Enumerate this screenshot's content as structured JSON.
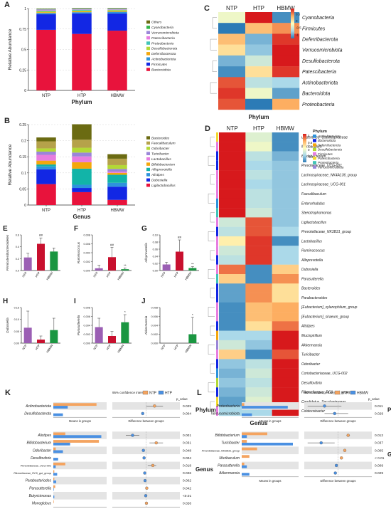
{
  "panels": {
    "A": {
      "letter": "A",
      "ylabel": "Relative Abundance",
      "xlabel": "Phylum",
      "categories": [
        "NTP",
        "HTP",
        "HBMW"
      ],
      "yticks": [
        "0",
        "0.25",
        "0.5",
        "0.75",
        "1"
      ],
      "series": [
        {
          "name": "Bacteroidota",
          "color": "#e8133c",
          "values": [
            0.74,
            0.69,
            0.73
          ]
        },
        {
          "name": "Firmicutes",
          "color": "#1227e4",
          "values": [
            0.19,
            0.25,
            0.21
          ]
        },
        {
          "name": "Actinobacteriota",
          "color": "#2d93dc",
          "values": [
            0.015,
            0.015,
            0.02
          ]
        },
        {
          "name": "Deferribacterota",
          "color": "#f4a70c",
          "values": [
            0.01,
            0.01,
            0.01
          ]
        },
        {
          "name": "Desulfobacterota",
          "color": "#b3d936",
          "values": [
            0.01,
            0.01,
            0.01
          ]
        },
        {
          "name": "Proteobacteria",
          "color": "#41c5b7",
          "values": [
            0.01,
            0.01,
            0.005
          ]
        },
        {
          "name": "Patescibacteria",
          "color": "#e77de0",
          "values": [
            0.01,
            0.005,
            0.005
          ]
        },
        {
          "name": "Verrucomicrobiota",
          "color": "#9a86d8",
          "values": [
            0.005,
            0.005,
            0.005
          ]
        },
        {
          "name": "Cyanobacteria",
          "color": "#33b54a",
          "values": [
            0.005,
            0.005,
            0.005
          ]
        },
        {
          "name": "Others",
          "color": "#6b6b12",
          "values": [
            0.005,
            0.005,
            0.005
          ]
        }
      ]
    },
    "B": {
      "letter": "B",
      "ylabel": "Relative Abundance",
      "xlabel": "Genus",
      "categories": [
        "NTP",
        "HTP",
        "HBMW"
      ],
      "yticks": [
        "0",
        "0.05",
        "0.1",
        "0.15",
        "0.2",
        "0.25"
      ],
      "series": [
        {
          "name": "Ligilactobacillus",
          "color": "#e8133c",
          "values": [
            0.065,
            0.04,
            0.016
          ]
        },
        {
          "name": "Dubosiella",
          "color": "#1227e4",
          "values": [
            0.046,
            0.013,
            0.041
          ]
        },
        {
          "name": "Alistipes",
          "color": "#2d93dc",
          "values": [
            0.009,
            0.01,
            0.012
          ]
        },
        {
          "name": "Alloprevotella",
          "color": "#12b4a8",
          "values": [
            0.006,
            0.05,
            0.025
          ]
        },
        {
          "name": "Bifidobacterium",
          "color": "#f4a70c",
          "values": [
            0.012,
            0.02,
            0.006
          ]
        },
        {
          "name": "Lactobacillus",
          "color": "#e77de0",
          "values": [
            0.018,
            0.018,
            0.004
          ]
        },
        {
          "name": "Turicibacter",
          "color": "#9a86d8",
          "values": [
            0.01,
            0.012,
            0.008
          ]
        },
        {
          "name": "Odoribacter",
          "color": "#b3d936",
          "values": [
            0.01,
            0.015,
            0.012
          ]
        },
        {
          "name": "Faecalibaculum",
          "color": "#b5a24a",
          "values": [
            0.022,
            0.025,
            0.02
          ]
        },
        {
          "name": "Bacteroides",
          "color": "#6b6b12",
          "values": [
            0.012,
            0.048,
            0.014
          ]
        }
      ]
    },
    "E": {
      "letter": "E",
      "ylabel": "Firmicutes/Bacteroidetes",
      "categories": [
        "NTP",
        "HTP",
        "HBMW"
      ],
      "ymax": 0.6,
      "yticks": [
        "0.0",
        "0.2",
        "0.4",
        "0.6"
      ],
      "values": [
        0.22,
        0.45,
        0.32
      ],
      "errors": [
        0.07,
        0.1,
        0.06
      ],
      "marks": [
        "",
        "##",
        ""
      ]
    },
    "F": {
      "letter": "F",
      "ylabel": "Ruminococcus",
      "categories": [
        "NTP",
        "HTP",
        "HBMW"
      ],
      "ymax": 0.008,
      "yticks": [
        "0.000",
        "0.002",
        "0.004",
        "0.006",
        "0.008"
      ],
      "values": [
        0.0005,
        0.003,
        0.0003
      ],
      "errors": [
        0.0007,
        0.0022,
        0.0003
      ],
      "marks": [
        "",
        "##",
        "**"
      ]
    },
    "G": {
      "letter": "G",
      "ylabel": "Alloprevotella",
      "categories": [
        "NTP",
        "HTP",
        "HBMW"
      ],
      "ymax": 0.1,
      "yticks": [
        "0.00",
        "0.02",
        "0.04",
        "0.06",
        "0.08",
        "0.10"
      ],
      "values": [
        0.017,
        0.053,
        0.007
      ],
      "errors": [
        0.006,
        0.033,
        0.004
      ],
      "marks": [
        "",
        "##",
        "**"
      ]
    },
    "H": {
      "letter": "H",
      "ylabel": "Dubosiella",
      "categories": [
        "NTP",
        "HTP",
        "HBMW"
      ],
      "ymax": 0.15,
      "yticks": [
        "0.00",
        "0.05",
        "0.10",
        "0.15"
      ],
      "values": [
        0.065,
        0.015,
        0.055
      ],
      "errors": [
        0.07,
        0.015,
        0.05
      ],
      "marks": [
        "",
        "",
        ""
      ]
    },
    "I": {
      "letter": "I",
      "ylabel": "Parasutterella",
      "categories": [
        "NTP",
        "HTP",
        "HBMW"
      ],
      "ymax": 0.008,
      "yticks": [
        "0.000",
        "0.002",
        "0.004",
        "0.006",
        "0.008"
      ],
      "values": [
        0.0036,
        0.0016,
        0.0047
      ],
      "errors": [
        0.002,
        0.001,
        0.0017
      ],
      "marks": [
        "",
        "",
        "*"
      ]
    },
    "J": {
      "letter": "J",
      "ylabel": "Akkermansia",
      "categories": [
        "NTP",
        "HTP",
        "HBMW"
      ],
      "ymax": 0.008,
      "yticks": [
        "0.000",
        "0.002",
        "0.004",
        "0.006",
        "0.008"
      ],
      "values": [
        0.0,
        0.0,
        0.002
      ],
      "errors": [
        0.0,
        0.0,
        0.0038
      ],
      "marks": [
        "",
        "",
        "*"
      ]
    },
    "C": {
      "letter": "C",
      "xlabel": "Phylum",
      "columns": [
        "NTP",
        "HTP",
        "HBMW"
      ],
      "rows": [
        "Cyanobacteria",
        "Firmicutes",
        "Deferribacterota",
        "Verrucomicrobiota",
        "Desulfobacterota",
        "Patescibacteria",
        "Actinobacteriota",
        "Bacteroidota",
        "Proteobacteria"
      ],
      "values": [
        [
          -0.1,
          1.0,
          -0.9
        ],
        [
          -1.0,
          0.4,
          0.6
        ],
        [
          0.4,
          -0.7,
          0.9
        ],
        [
          0.2,
          -0.6,
          1.0
        ],
        [
          -0.7,
          -0.3,
          1.0
        ],
        [
          -0.9,
          0.2,
          0.9
        ],
        [
          0.8,
          -0.4,
          -0.5
        ],
        [
          0.9,
          -0.1,
          -0.8
        ],
        [
          0.8,
          -1.0,
          0.5
        ]
      ],
      "scale_ticks": [
        "0.5",
        "0",
        "-0.5",
        "-1"
      ]
    },
    "D": {
      "letter": "D",
      "xlabel": "Genus",
      "columns": [
        "NTP",
        "HTP",
        "HBMW"
      ],
      "rows": [
        "unidentified_Oscillospiraceae",
        "Muribaculum",
        "Bifidobacterium",
        "Prevotellaceae_UCG-001",
        "Lachnospiraceae_NK4A136_group",
        "Lachnospiraceae_UCG-001",
        "Faecalibaculum",
        "Enterorhabdus",
        "Stenotrophomonas",
        "Ligilactobacillus",
        "Prevotellaceae_NK3B31_group",
        "Lactobacillus",
        "Ruminococcus",
        "Alloprevotella",
        "Dubosiella",
        "Parasutterella",
        "Bacteroides",
        "Parabacteroides",
        "[Eubacterium]_xylanophilum_group",
        "[Eubacterium]_siraeum_group",
        "Alistipes",
        "Mucispirillum",
        "Akkermansia",
        "Turicibacter",
        "Odoribacter",
        "Coriobacteriaceae_UCG-002",
        "Desulfovibrio",
        "Rikenellaceae_RC9_gut_group",
        "Candidatus_Saccharimonas",
        "Coldexsibacter"
      ],
      "values": [
        [
          1,
          -0.2,
          -0.9
        ],
        [
          1,
          -0.1,
          -0.9
        ],
        [
          1,
          -0.4,
          -0.7
        ],
        [
          1,
          -0.5,
          -0.6
        ],
        [
          1,
          -0.4,
          -0.6
        ],
        [
          1,
          -0.5,
          -0.6
        ],
        [
          1,
          -0.4,
          -0.6
        ],
        [
          1,
          -0.4,
          -0.6
        ],
        [
          1,
          -0.3,
          -0.6
        ],
        [
          -0.3,
          0.8,
          -0.6
        ],
        [
          -0.4,
          0.8,
          -0.5
        ],
        [
          0.1,
          0.9,
          -0.9
        ],
        [
          -0.3,
          0.9,
          -0.5
        ],
        [
          -0.4,
          0.9,
          -0.5
        ],
        [
          0.7,
          -0.9,
          0.3
        ],
        [
          0.3,
          -0.9,
          0.6
        ],
        [
          -0.8,
          0.6,
          0.2
        ],
        [
          -0.8,
          0.6,
          0.2
        ],
        [
          -0.9,
          0.4,
          0.5
        ],
        [
          -0.9,
          0.4,
          0.5
        ],
        [
          -0.9,
          0.2,
          0.7
        ],
        [
          -0.5,
          -0.5,
          1
        ],
        [
          -0.3,
          -0.6,
          1
        ],
        [
          0.3,
          -0.9,
          0.8
        ],
        [
          -0.6,
          -0.4,
          1
        ],
        [
          -0.7,
          -0.3,
          1
        ],
        [
          -0.6,
          -0.4,
          1
        ],
        [
          -0.7,
          -0.3,
          1
        ],
        [
          -0.8,
          -0.2,
          1
        ],
        [
          -0.5,
          -0.5,
          1
        ]
      ],
      "row_groups": [
        "#f2d930",
        "#e77de0",
        "#1227e4",
        "#1227e4",
        "#e77de0",
        "#e77de0",
        "#e77de0",
        "#2d93dc",
        "#41c5b7",
        "#e77de0",
        "#1227e4",
        "#e77de0",
        "#e77de0",
        "#1227e4",
        "#e77de0",
        "#41c5b7",
        "#1227e4",
        "#1227e4",
        "#e77de0",
        "#e77de0",
        "#1227e4",
        "#f4a70c",
        "#9a86d8",
        "#e77de0",
        "#1227e4",
        "#2d93dc",
        "#b3d936",
        "#1227e4",
        "#f2d930",
        "#e77de0"
      ],
      "scale_ticks": [
        "1",
        "0.5",
        "0",
        "-0.5"
      ],
      "legend_title": "Phylum",
      "legend": [
        {
          "name": "Actinobacteriota",
          "color": "#2d93dc"
        },
        {
          "name": "Bacteroidota",
          "color": "#1227e4"
        },
        {
          "name": "Deferribacterota",
          "color": "#f4a70c"
        },
        {
          "name": "Desulfobacterota",
          "color": "#b3d936"
        },
        {
          "name": "Firmicutes",
          "color": "#e77de0"
        },
        {
          "name": "Patescibacteria",
          "color": "#f2d930"
        },
        {
          "name": "Proteobacteria",
          "color": "#41c5b7"
        },
        {
          "name": "Verrucomicrobiota",
          "color": "#9a86d8"
        }
      ]
    },
    "K": {
      "letter": "K",
      "ci_label": "95% confidence intervals",
      "groups": [
        {
          "name": "NTP",
          "color": "#f4a460"
        },
        {
          "name": "HTP",
          "color": "#4a90e2"
        }
      ],
      "pvalue_label": "p_value",
      "means_label": "Means in groups",
      "diff_label": "Difference between groups",
      "sections": [
        {
          "name": "Phylum",
          "rows": [
            {
              "name": "Actinobacteriota",
              "a": 0.9,
              "b": 0.3,
              "diff": 0.25,
              "ci": [
                0.0,
                0.5
              ],
              "p": "0.029"
            },
            {
              "name": "Desulfobacterota",
              "a": 0.0,
              "b": 0.2,
              "diff": -0.1,
              "ci": [
                -0.12,
                -0.08
              ],
              "p": "0.004"
            }
          ]
        },
        {
          "name": "Genus",
          "rows": [
            {
              "name": "Alistipes",
              "a": 0.25,
              "b": 1.0,
              "diff": -0.4,
              "ci": [
                -0.6,
                -0.2
              ],
              "p": "0.001"
            },
            {
              "name": "Bifidobacterium",
              "a": 0.95,
              "b": 0.35,
              "diff": 0.3,
              "ci": [
                0.1,
                0.5
              ],
              "p": "0.031"
            },
            {
              "name": "Odoribacter",
              "a": 0.05,
              "b": 0.2,
              "diff": -0.08,
              "ci": [
                -0.12,
                -0.04
              ],
              "p": "0.048"
            },
            {
              "name": "Desulfovibrio",
              "a": 0.0,
              "b": 0.1,
              "diff": -0.06,
              "ci": [
                -0.08,
                -0.04
              ],
              "p": "0.004"
            },
            {
              "name": "Prevotellaceae_UCG-001",
              "a": 0.25,
              "b": 0.05,
              "diff": 0.2,
              "ci": [
                0.05,
                0.3
              ],
              "p": "0.018"
            },
            {
              "name": "Rikenellaceae_RC9_gut_group",
              "a": 0.02,
              "b": 0.08,
              "diff": -0.04,
              "ci": [
                -0.06,
                -0.02
              ],
              "p": "0.026"
            },
            {
              "name": "Parabacteriodes",
              "a": 0.02,
              "b": 0.06,
              "diff": -0.03,
              "ci": [
                -0.05,
                -0.01
              ],
              "p": "0.002"
            },
            {
              "name": "Parasutterella",
              "a": 0.04,
              "b": 0.01,
              "diff": 0.02,
              "ci": [
                0.01,
                0.03
              ],
              "p": "0.042"
            },
            {
              "name": "Butyricimonas",
              "a": 0.0,
              "b": 0.02,
              "diff": -0.01,
              "ci": [
                -0.02,
                0.0
              ],
              "p": "<0.01"
            },
            {
              "name": "Monoglobus",
              "a": 0.01,
              "b": 0.0,
              "diff": 0.01,
              "ci": [
                0.0,
                0.02
              ],
              "p": "0.026"
            }
          ]
        }
      ]
    },
    "L": {
      "letter": "L",
      "ci_label": "95% confidence intervals",
      "groups": [
        {
          "name": "HTP",
          "color": "#f4a460"
        },
        {
          "name": "HBMW",
          "color": "#4a90e2"
        }
      ],
      "pvalue_label": "p_value",
      "means_label": "Means in groups",
      "diff_label": "Difference between groups",
      "sections": [
        {
          "name": "Phylum",
          "rows": [
            {
              "name": "Proteobacteria",
              "a": 0.05,
              "b": 0.9,
              "diff": -0.4,
              "ci": [
                -0.9,
                0.1
              ],
              "p": "0.011"
            },
            {
              "name": "Verrucomicrobiota",
              "a": 0.0,
              "b": 0.2,
              "diff": -0.1,
              "ci": [
                -0.4,
                0.3
              ],
              "p": "0.029"
            }
          ]
        },
        {
          "name": "Genus",
          "rows": [
            {
              "name": "Bifidobacterium",
              "a": 0.5,
              "b": 0.1,
              "diff": 0.3,
              "ci": [
                0.25,
                0.35
              ],
              "p": "0.012"
            },
            {
              "name": "Turicibacter",
              "a": 0.1,
              "b": 1.0,
              "diff": -0.5,
              "ci": [
                -0.9,
                -0.1
              ],
              "p": "0.037"
            },
            {
              "name": "Prevotellaceae_NK3B31_group",
              "a": 0.3,
              "b": 0.0,
              "diff": 0.2,
              "ci": [
                0.18,
                0.22
              ],
              "p": "0.005"
            },
            {
              "name": "Muribaculum",
              "a": 0.15,
              "b": 0.0,
              "diff": 0.1,
              "ci": [
                0.08,
                0.12
              ],
              "p": "< 0.01"
            },
            {
              "name": "Parasutterella",
              "a": 0.05,
              "b": 0.1,
              "diff": -0.05,
              "ci": [
                -0.07,
                -0.03
              ],
              "p": "0.009"
            },
            {
              "name": "Akkermansia",
              "a": 0.0,
              "b": 0.15,
              "diff": -0.08,
              "ci": [
                -0.1,
                -0.06
              ],
              "p": "0.029"
            }
          ]
        }
      ]
    }
  }
}
